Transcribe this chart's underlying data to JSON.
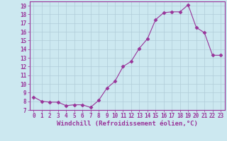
{
  "x": [
    0,
    1,
    2,
    3,
    4,
    5,
    6,
    7,
    8,
    9,
    10,
    11,
    12,
    13,
    14,
    15,
    16,
    17,
    18,
    19,
    20,
    21,
    22,
    23
  ],
  "y": [
    8.5,
    8.0,
    7.9,
    7.9,
    7.5,
    7.6,
    7.6,
    7.3,
    8.1,
    9.5,
    10.3,
    12.0,
    12.6,
    14.1,
    15.2,
    17.4,
    18.2,
    18.3,
    18.3,
    19.1,
    16.5,
    15.9,
    13.3,
    13.3
  ],
  "line_color": "#993399",
  "marker": "D",
  "marker_size": 2.5,
  "bg_color": "#cce8f0",
  "grid_color": "#b0ccd8",
  "xlabel": "Windchill (Refroidissement éolien,°C)",
  "ylabel": "",
  "xlim": [
    -0.5,
    23.5
  ],
  "ylim": [
    7,
    19.5
  ],
  "yticks": [
    7,
    8,
    9,
    10,
    11,
    12,
    13,
    14,
    15,
    16,
    17,
    18,
    19
  ],
  "xticks": [
    0,
    1,
    2,
    3,
    4,
    5,
    6,
    7,
    8,
    9,
    10,
    11,
    12,
    13,
    14,
    15,
    16,
    17,
    18,
    19,
    20,
    21,
    22,
    23
  ],
  "tick_fontsize": 5.5,
  "xlabel_fontsize": 6.5,
  "tick_color": "#993399",
  "axis_color": "#993399"
}
